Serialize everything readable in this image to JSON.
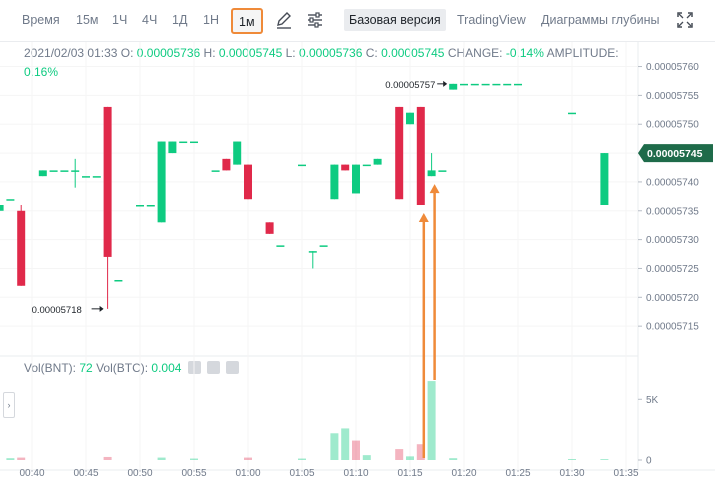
{
  "toolbar": {
    "time_label": "Время",
    "intervals": [
      "15м",
      "1Ч",
      "4Ч",
      "1Д",
      "1Н"
    ],
    "active_interval": "1м",
    "base_version": "Базовая версия",
    "tradingview": "TradingView",
    "depth_charts": "Диаграммы глубины",
    "pencil_icon": "pencil-icon",
    "settings_icon": "sliders-icon",
    "fullscreen_icon": "fullscreen-icon"
  },
  "legend": {
    "datetime": "2021/02/03 01:33",
    "o_label": "O:",
    "o": "0.00005736",
    "h_label": "H:",
    "h": "0.00005745",
    "l_label": "L:",
    "l": "0.00005736",
    "c_label": "C:",
    "c": "0.00005745",
    "change_label": "CHANGE:",
    "change": "-0.14%",
    "amplitude_label": "AMPLITUDE:",
    "amplitude": "0.16%"
  },
  "volume_legend": {
    "bnt_label": "Vol(BNT):",
    "bnt": "72",
    "btc_label": "Vol(BTC):",
    "btc": "0.004"
  },
  "side_tab_glyph": "›",
  "annotations": {
    "high_label": "0.00005757",
    "low_label": "0.00005718"
  },
  "colors": {
    "up": "#0ecb81",
    "down": "#e0294a",
    "arrow": "#ef8a39",
    "price_tag": "#1e6b4a"
  },
  "chart_data": [
    {
      "type": "candlestick",
      "ylim": [
        5.71e-05,
        5.762e-05
      ],
      "y_ticks": [
        "0.00005760",
        "0.00005755",
        "0.00005750",
        "0.00005745",
        "0.00005740",
        "0.00005735",
        "0.00005730",
        "0.00005725",
        "0.00005720",
        "0.00005715"
      ],
      "x_ticks": [
        "00:40",
        "00:45",
        "00:50",
        "00:55",
        "01:00",
        "01:05",
        "01:10",
        "01:15",
        "01:20",
        "01:25",
        "01:30",
        "01:35"
      ],
      "current_price": "0.00005745",
      "candles": [
        {
          "t": "00:37",
          "o": 5.735e-05,
          "h": 5.736e-05,
          "l": 5.735e-05,
          "c": 5.736e-05
        },
        {
          "t": "00:38",
          "o": 5.737e-05,
          "h": 5.737e-05,
          "l": 5.737e-05,
          "c": 5.737e-05
        },
        {
          "t": "00:39",
          "o": 5.735e-05,
          "h": 5.736e-05,
          "l": 5.722e-05,
          "c": 5.722e-05
        },
        {
          "t": "00:41",
          "o": 5.741e-05,
          "h": 5.742e-05,
          "l": 5.741e-05,
          "c": 5.742e-05
        },
        {
          "t": "00:42",
          "o": 5.742e-05,
          "h": 5.742e-05,
          "l": 5.742e-05,
          "c": 5.742e-05
        },
        {
          "t": "00:43",
          "o": 5.742e-05,
          "h": 5.742e-05,
          "l": 5.742e-05,
          "c": 5.742e-05
        },
        {
          "t": "00:44",
          "o": 5.742e-05,
          "h": 5.744e-05,
          "l": 5.739e-05,
          "c": 5.742e-05
        },
        {
          "t": "00:45",
          "o": 5.741e-05,
          "h": 5.741e-05,
          "l": 5.741e-05,
          "c": 5.741e-05
        },
        {
          "t": "00:46",
          "o": 5.741e-05,
          "h": 5.741e-05,
          "l": 5.741e-05,
          "c": 5.741e-05
        },
        {
          "t": "00:47",
          "o": 5.753e-05,
          "h": 5.753e-05,
          "l": 5.718e-05,
          "c": 5.727e-05
        },
        {
          "t": "00:48",
          "o": 5.723e-05,
          "h": 5.723e-05,
          "l": 5.723e-05,
          "c": 5.723e-05
        },
        {
          "t": "00:50",
          "o": 5.736e-05,
          "h": 5.736e-05,
          "l": 5.736e-05,
          "c": 5.736e-05
        },
        {
          "t": "00:51",
          "o": 5.736e-05,
          "h": 5.736e-05,
          "l": 5.736e-05,
          "c": 5.736e-05
        },
        {
          "t": "00:52",
          "o": 5.733e-05,
          "h": 5.747e-05,
          "l": 5.733e-05,
          "c": 5.747e-05
        },
        {
          "t": "00:53",
          "o": 5.745e-05,
          "h": 5.747e-05,
          "l": 5.745e-05,
          "c": 5.747e-05
        },
        {
          "t": "00:54",
          "o": 5.747e-05,
          "h": 5.747e-05,
          "l": 5.747e-05,
          "c": 5.747e-05
        },
        {
          "t": "00:55",
          "o": 5.747e-05,
          "h": 5.747e-05,
          "l": 5.747e-05,
          "c": 5.747e-05
        },
        {
          "t": "00:57",
          "o": 5.742e-05,
          "h": 5.742e-05,
          "l": 5.742e-05,
          "c": 5.742e-05
        },
        {
          "t": "00:58",
          "o": 5.744e-05,
          "h": 5.744e-05,
          "l": 5.742e-05,
          "c": 5.742e-05
        },
        {
          "t": "00:59",
          "o": 5.743e-05,
          "h": 5.747e-05,
          "l": 5.743e-05,
          "c": 5.747e-05
        },
        {
          "t": "01:00",
          "o": 5.743e-05,
          "h": 5.743e-05,
          "l": 5.737e-05,
          "c": 5.737e-05
        },
        {
          "t": "01:02",
          "o": 5.733e-05,
          "h": 5.733e-05,
          "l": 5.731e-05,
          "c": 5.731e-05
        },
        {
          "t": "01:03",
          "o": 5.729e-05,
          "h": 5.729e-05,
          "l": 5.729e-05,
          "c": 5.729e-05
        },
        {
          "t": "01:05",
          "o": 5.743e-05,
          "h": 5.743e-05,
          "l": 5.743e-05,
          "c": 5.743e-05
        },
        {
          "t": "01:06",
          "o": 5.728e-05,
          "h": 5.728e-05,
          "l": 5.725e-05,
          "c": 5.728e-05
        },
        {
          "t": "01:07",
          "o": 5.729e-05,
          "h": 5.729e-05,
          "l": 5.729e-05,
          "c": 5.729e-05
        },
        {
          "t": "01:08",
          "o": 5.737e-05,
          "h": 5.743e-05,
          "l": 5.737e-05,
          "c": 5.743e-05
        },
        {
          "t": "01:09",
          "o": 5.743e-05,
          "h": 5.743e-05,
          "l": 5.742e-05,
          "c": 5.742e-05
        },
        {
          "t": "01:10",
          "o": 5.738e-05,
          "h": 5.743e-05,
          "l": 5.738e-05,
          "c": 5.743e-05
        },
        {
          "t": "01:11",
          "o": 5.743e-05,
          "h": 5.743e-05,
          "l": 5.743e-05,
          "c": 5.743e-05
        },
        {
          "t": "01:12",
          "o": 5.743e-05,
          "h": 5.744e-05,
          "l": 5.743e-05,
          "c": 5.744e-05
        },
        {
          "t": "01:14",
          "o": 5.753e-05,
          "h": 5.753e-05,
          "l": 5.737e-05,
          "c": 5.737e-05
        },
        {
          "t": "01:15",
          "o": 5.75e-05,
          "h": 5.752e-05,
          "l": 5.75e-05,
          "c": 5.752e-05
        },
        {
          "t": "01:16",
          "o": 5.753e-05,
          "h": 5.753e-05,
          "l": 5.736e-05,
          "c": 5.736e-05
        },
        {
          "t": "01:17",
          "o": 5.741e-05,
          "h": 5.745e-05,
          "l": 5.741e-05,
          "c": 5.742e-05
        },
        {
          "t": "01:18",
          "o": 5.742e-05,
          "h": 5.742e-05,
          "l": 5.742e-05,
          "c": 5.742e-05
        },
        {
          "t": "01:19",
          "o": 5.756e-05,
          "h": 5.757e-05,
          "l": 5.756e-05,
          "c": 5.757e-05
        },
        {
          "t": "01:20",
          "o": 5.757e-05,
          "h": 5.757e-05,
          "l": 5.757e-05,
          "c": 5.757e-05
        },
        {
          "t": "01:21",
          "o": 5.757e-05,
          "h": 5.757e-05,
          "l": 5.757e-05,
          "c": 5.757e-05
        },
        {
          "t": "01:22",
          "o": 5.757e-05,
          "h": 5.757e-05,
          "l": 5.757e-05,
          "c": 5.757e-05
        },
        {
          "t": "01:23",
          "o": 5.757e-05,
          "h": 5.757e-05,
          "l": 5.757e-05,
          "c": 5.757e-05
        },
        {
          "t": "01:24",
          "o": 5.757e-05,
          "h": 5.757e-05,
          "l": 5.757e-05,
          "c": 5.757e-05
        },
        {
          "t": "01:25",
          "o": 5.757e-05,
          "h": 5.757e-05,
          "l": 5.757e-05,
          "c": 5.757e-05
        },
        {
          "t": "01:30",
          "o": 5.752e-05,
          "h": 5.752e-05,
          "l": 5.752e-05,
          "c": 5.752e-05
        },
        {
          "t": "01:33",
          "o": 5.736e-05,
          "h": 5.745e-05,
          "l": 5.736e-05,
          "c": 5.745e-05
        }
      ]
    },
    {
      "type": "bar",
      "title": "Volume",
      "ylim": [
        0,
        7000
      ],
      "y_ticks": [
        "5K",
        "0"
      ],
      "bars": [
        {
          "t": "00:38",
          "v": 150,
          "dir": "up"
        },
        {
          "t": "00:39",
          "v": 200,
          "dir": "down"
        },
        {
          "t": "00:47",
          "v": 250,
          "dir": "down"
        },
        {
          "t": "00:52",
          "v": 200,
          "dir": "up"
        },
        {
          "t": "00:55",
          "v": 120,
          "dir": "up"
        },
        {
          "t": "01:00",
          "v": 200,
          "dir": "down"
        },
        {
          "t": "01:05",
          "v": 120,
          "dir": "up"
        },
        {
          "t": "01:08",
          "v": 2200,
          "dir": "up"
        },
        {
          "t": "01:09",
          "v": 2600,
          "dir": "up"
        },
        {
          "t": "01:10",
          "v": 1600,
          "dir": "down"
        },
        {
          "t": "01:11",
          "v": 400,
          "dir": "up"
        },
        {
          "t": "01:14",
          "v": 900,
          "dir": "down"
        },
        {
          "t": "01:15",
          "v": 300,
          "dir": "up"
        },
        {
          "t": "01:16",
          "v": 1300,
          "dir": "down"
        },
        {
          "t": "01:17",
          "v": 6500,
          "dir": "up"
        },
        {
          "t": "01:19",
          "v": 150,
          "dir": "up"
        },
        {
          "t": "01:30",
          "v": 80,
          "dir": "up"
        },
        {
          "t": "01:33",
          "v": 72,
          "dir": "up"
        }
      ]
    }
  ]
}
